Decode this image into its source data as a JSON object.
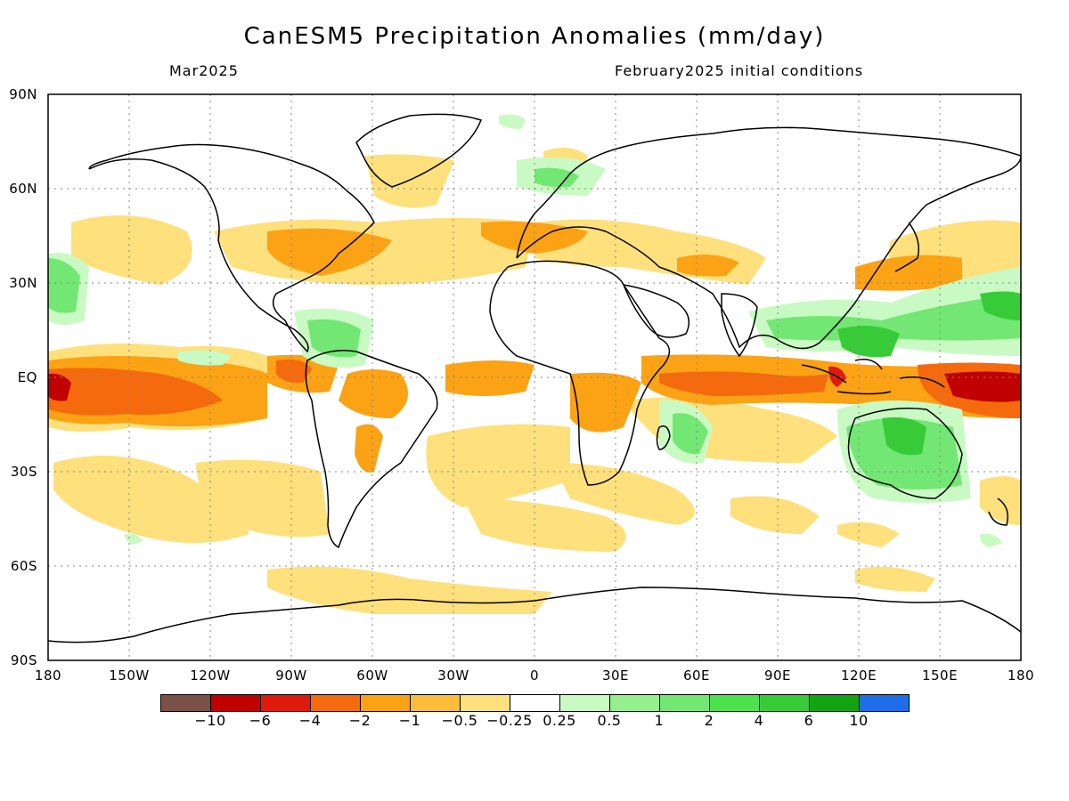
{
  "title": "CanESM5 Precipitation Anomalies (mm/day)",
  "subtitle_left": "Mar2025",
  "subtitle_right": "February2025 initial conditions",
  "lat_labels": [
    "90N",
    "60N",
    "30N",
    "EQ",
    "30S",
    "60S",
    "90S"
  ],
  "lon_labels": [
    "180",
    "150W",
    "120W",
    "90W",
    "60W",
    "30W",
    "0",
    "30E",
    "60E",
    "90E",
    "120E",
    "150E",
    "180"
  ],
  "colorbar": {
    "colors": [
      "#7b5145",
      "#c00000",
      "#e0190f",
      "#f46a0c",
      "#fba215",
      "#fdbd3c",
      "#fee07c",
      "#ffffff",
      "#c9fac4",
      "#95ef8c",
      "#72e773",
      "#4de24d",
      "#37cc37",
      "#12a212",
      "#1f6de8"
    ],
    "labels": [
      "−10",
      "−6",
      "−4",
      "−2",
      "−1",
      "−0.5",
      "−0.25",
      "0.25",
      "0.5",
      "1",
      "2",
      "4",
      "6",
      "10"
    ]
  },
  "colors": {
    "background": "#ffffff",
    "dry_strong": "#c00000",
    "dry": "#f46a0c",
    "dry_mild": "#fba215",
    "dry_light": "#fee07c",
    "wet_light": "#c9fac4",
    "wet": "#72e773",
    "wet_strong": "#37cc37",
    "coast": "#000000"
  }
}
